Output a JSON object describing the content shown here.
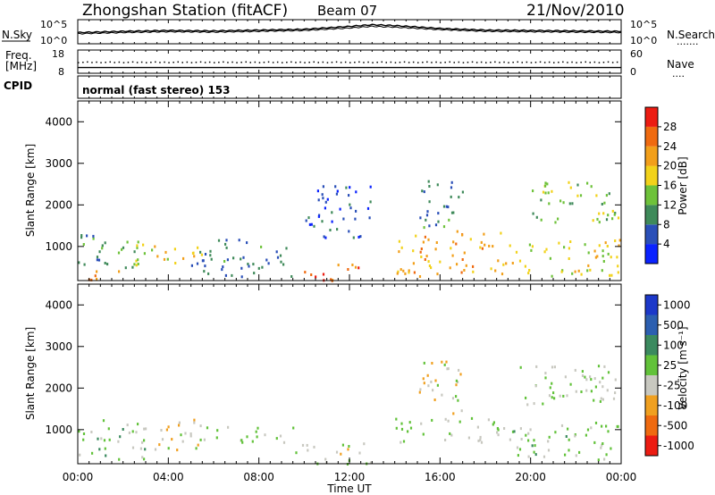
{
  "header": {
    "station": "Zhongshan Station (fitACF)",
    "beam": "Beam 07",
    "date": "21/Nov/2010"
  },
  "noise_panel": {
    "left_label": "N.Sky",
    "right_label": "N.Search",
    "right_legend_marker": ".......",
    "left_ticks": [
      "10^5",
      "10^0"
    ],
    "right_ticks": [
      "10^5",
      "10^0"
    ]
  },
  "freq_panel": {
    "left_label_top": "Freq.",
    "left_label_bottom": "[MHz]",
    "left_ticks": [
      "18",
      "8"
    ],
    "right_label": "Nave",
    "right_legend_marker": "....",
    "right_ticks": [
      "60",
      "0"
    ]
  },
  "cpid_panel": {
    "label": "CPID",
    "text": "normal (fast stereo) 153"
  },
  "x_axis": {
    "label": "Time UT",
    "ticks": [
      "00:00",
      "04:00",
      "08:00",
      "12:00",
      "16:00",
      "20:00",
      "00:00"
    ]
  },
  "y_axis": {
    "label": "Slant Range [km]",
    "ticks": [
      "1000",
      "2000",
      "3000",
      "4000"
    ]
  },
  "power_colorbar": {
    "label": "Power [dB]",
    "ticks": [
      "4",
      "8",
      "12",
      "16",
      "20",
      "24",
      "28"
    ],
    "colors": [
      "#0a22ff",
      "#2a4fb8",
      "#3f8a5a",
      "#6ec23a",
      "#f2d21a",
      "#f29f1a",
      "#ef6a10",
      "#ec1c12"
    ]
  },
  "velocity_colorbar": {
    "label": "Velocity [m s⁻¹]",
    "ticks": [
      "1000",
      "500",
      "100",
      "25",
      "-25",
      "-100",
      "-500",
      "-1000"
    ],
    "colors": [
      "#1c38c9",
      "#2c5fb0",
      "#3b8a5f",
      "#62c23a",
      "#c8c8c0",
      "#f0a020",
      "#ef6a10",
      "#ec1c12"
    ]
  },
  "chart_data": [
    {
      "type": "line",
      "title": "Zhongshan Station (fitACF) Beam 07",
      "series": [
        {
          "name": "N.Sky",
          "x_hours": [
            0,
            2,
            4,
            6,
            8,
            10,
            12,
            13,
            14,
            16,
            18,
            20,
            22,
            24
          ],
          "log10_values": [
            2.3,
            2.6,
            2.8,
            2.7,
            2.9,
            3.1,
            3.8,
            4.2,
            4.0,
            3.3,
            2.9,
            2.8,
            2.7,
            2.6
          ]
        },
        {
          "name": "N.Search",
          "x_hours": [
            0,
            2,
            4,
            6,
            8,
            10,
            12,
            13,
            14,
            16,
            18,
            20,
            22,
            24
          ],
          "log10_values": [
            2.0,
            2.3,
            2.5,
            2.4,
            2.6,
            2.8,
            3.4,
            3.8,
            3.6,
            3.0,
            2.6,
            2.5,
            2.4,
            2.3
          ]
        }
      ],
      "ylim_log10": [
        0,
        5
      ]
    },
    {
      "type": "scatter",
      "series": [
        {
          "name": "Freq.",
          "x_hours": [
            0,
            24
          ],
          "values": [
            10,
            10
          ]
        },
        {
          "name": "Nave",
          "x_hours": [
            0,
            4,
            8,
            12,
            16,
            20,
            24
          ],
          "values": [
            30,
            30,
            30,
            30,
            30,
            30,
            30
          ]
        }
      ],
      "ylim_freq": [
        8,
        18
      ],
      "ylim_nave": [
        0,
        60
      ]
    },
    {
      "type": "heatmap",
      "title": "Power [dB]",
      "xlabel": "Time UT",
      "ylabel": "Slant Range [km]",
      "xlim_hours": [
        0,
        24
      ],
      "ylim_km": [
        180,
        4500
      ],
      "clim": [
        0,
        30
      ],
      "regions": [
        {
          "t0": 0.0,
          "t1": 2.0,
          "r0": 200,
          "r1": 450,
          "value": 22
        },
        {
          "t0": 0.0,
          "t1": 3.0,
          "r0": 450,
          "r1": 1300,
          "value": 10
        },
        {
          "t0": 2.5,
          "t1": 5.5,
          "r0": 500,
          "r1": 1100,
          "value": 18
        },
        {
          "t0": 5.0,
          "t1": 9.5,
          "r0": 300,
          "r1": 1200,
          "value": 8
        },
        {
          "t0": 9.5,
          "t1": 12.5,
          "r0": 200,
          "r1": 600,
          "value": 24
        },
        {
          "t0": 10.0,
          "t1": 13.0,
          "r0": 1200,
          "r1": 2500,
          "value": 6
        },
        {
          "t0": 14.0,
          "t1": 19.0,
          "r0": 300,
          "r1": 1400,
          "value": 20
        },
        {
          "t0": 15.0,
          "t1": 17.0,
          "r0": 1400,
          "r1": 2600,
          "value": 8
        },
        {
          "t0": 19.0,
          "t1": 24.0,
          "r0": 300,
          "r1": 1200,
          "value": 16
        },
        {
          "t0": 20.0,
          "t1": 24.0,
          "r0": 1600,
          "r1": 2600,
          "value": 14
        }
      ]
    },
    {
      "type": "heatmap",
      "title": "Velocity [m s⁻¹]",
      "xlabel": "Time UT",
      "ylabel": "Slant Range [km]",
      "xlim_hours": [
        0,
        24
      ],
      "ylim_km": [
        180,
        4500
      ],
      "clim": [
        -1000,
        1000
      ],
      "regions": [
        {
          "t0": 0.0,
          "t1": 3.0,
          "r0": 300,
          "r1": 1300,
          "value": 60
        },
        {
          "t0": 3.0,
          "t1": 5.5,
          "r0": 500,
          "r1": 1300,
          "value": -200
        },
        {
          "t0": 5.5,
          "t1": 9.5,
          "r0": 700,
          "r1": 1100,
          "value": 0
        },
        {
          "t0": 9.5,
          "t1": 13.0,
          "r0": 200,
          "r1": 700,
          "value": -80
        },
        {
          "t0": 14.0,
          "t1": 19.0,
          "r0": 700,
          "r1": 1300,
          "value": 0
        },
        {
          "t0": 15.0,
          "t1": 17.0,
          "r0": 1400,
          "r1": 2700,
          "value": -150
        },
        {
          "t0": 19.0,
          "t1": 24.0,
          "r0": 300,
          "r1": 1200,
          "value": 60
        },
        {
          "t0": 19.5,
          "t1": 24.0,
          "r0": 1600,
          "r1": 2600,
          "value": 0
        }
      ]
    }
  ]
}
